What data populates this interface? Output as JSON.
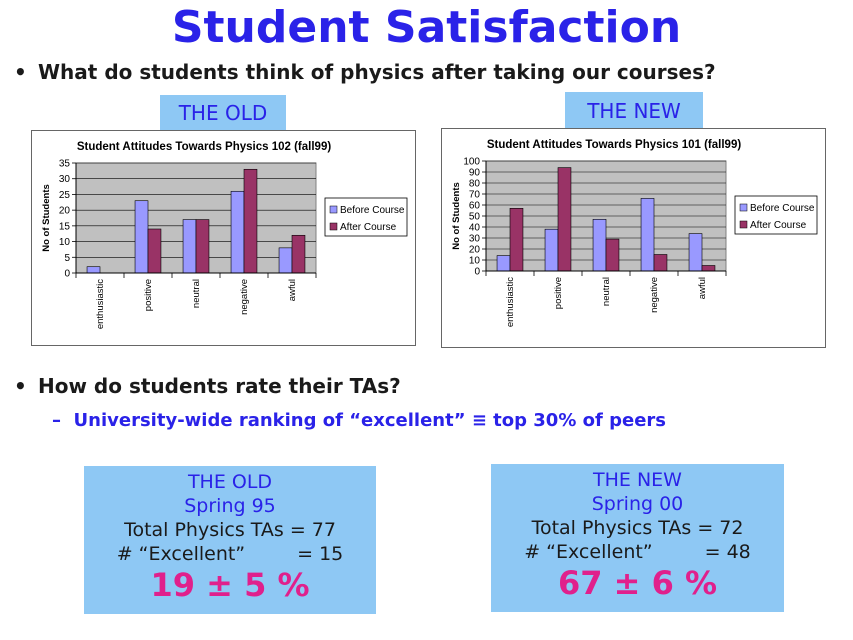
{
  "title": "Student Satisfaction",
  "bullet1": "What do students think of physics after taking our courses?",
  "tag_old": "THE OLD",
  "tag_new": "THE NEW",
  "bullet2": "How do students rate their TAs?",
  "sub_bullet": "University-wide ranking of “excellent”  ≡  top 30% of peers",
  "chart_data": [
    {
      "type": "bar",
      "title": "Student Attitudes Towards Physics 102 (fall99)",
      "ylabel": "No of Students",
      "categories": [
        "enthusiastic",
        "positive",
        "neutral",
        "negative",
        "awful"
      ],
      "series": [
        {
          "name": "Before Course",
          "color": "#9999ff",
          "values": [
            2,
            23,
            17,
            26,
            8
          ]
        },
        {
          "name": "After Course",
          "color": "#993366",
          "values": [
            0,
            14,
            17,
            33,
            12
          ]
        }
      ],
      "ylim": [
        0,
        35
      ],
      "yticks": [
        0,
        5,
        10,
        15,
        20,
        25,
        30,
        35
      ],
      "grid": true,
      "legend": "right"
    },
    {
      "type": "bar",
      "title": "Student Attitudes Towards Physics 101 (fall99)",
      "ylabel": "No of Students",
      "categories": [
        "enthusiastic",
        "positive",
        "neutral",
        "negative",
        "awful"
      ],
      "series": [
        {
          "name": "Before Course",
          "color": "#9999ff",
          "values": [
            14,
            38,
            47,
            66,
            34
          ]
        },
        {
          "name": "After Course",
          "color": "#993366",
          "values": [
            57,
            94,
            29,
            15,
            5
          ]
        }
      ],
      "ylim": [
        0,
        100
      ],
      "yticks": [
        0,
        10,
        20,
        30,
        40,
        50,
        60,
        70,
        80,
        90,
        100
      ],
      "grid": true,
      "legend": "right"
    }
  ],
  "old_stats": {
    "heading": "THE OLD",
    "term": "Spring 95",
    "total_label": "Total Physics TAs",
    "total_eq": "=",
    "total_value": "77",
    "excellent_label": "# “Excellent”",
    "excellent_eq": "=",
    "excellent_value": "15",
    "percent": "19 ± 5 %"
  },
  "new_stats": {
    "heading": "THE NEW",
    "term": "Spring 00",
    "total_label": "Total Physics TAs",
    "total_eq": "=",
    "total_value": "72",
    "excellent_label": "# “Excellent”",
    "excellent_eq": "=",
    "excellent_value": "48",
    "percent": "67 ± 6 %"
  }
}
